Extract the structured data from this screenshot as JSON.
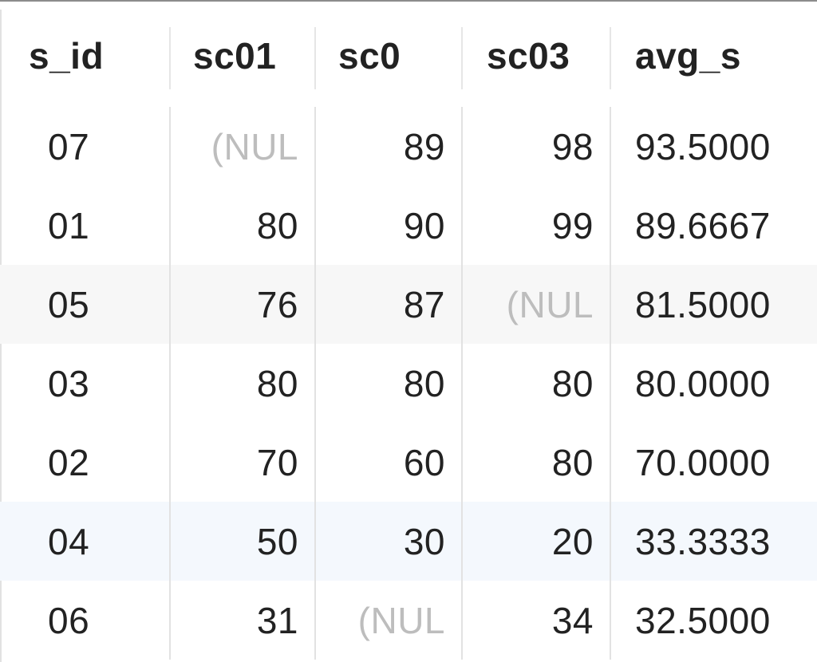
{
  "table": {
    "columns": [
      "s_id",
      "sc01",
      "sc0",
      "sc03",
      "avg_s"
    ],
    "rows": [
      [
        "07",
        "(NUL",
        "89",
        "98",
        "93.5000"
      ],
      [
        "01",
        "80",
        "90",
        "99",
        "89.6667"
      ],
      [
        "05",
        "76",
        "87",
        "(NUL",
        "81.5000"
      ],
      [
        "03",
        "80",
        "80",
        "80",
        "80.0000"
      ],
      [
        "02",
        "70",
        "60",
        "80",
        "70.0000"
      ],
      [
        "04",
        "50",
        "30",
        "20",
        "33.3333"
      ],
      [
        "06",
        "31",
        "(NUL",
        "34",
        "32.5000"
      ]
    ],
    "null_color": "#bdbdbd",
    "stripe_color": "#f7f7f7",
    "selected_color": "#f4f8fd"
  }
}
